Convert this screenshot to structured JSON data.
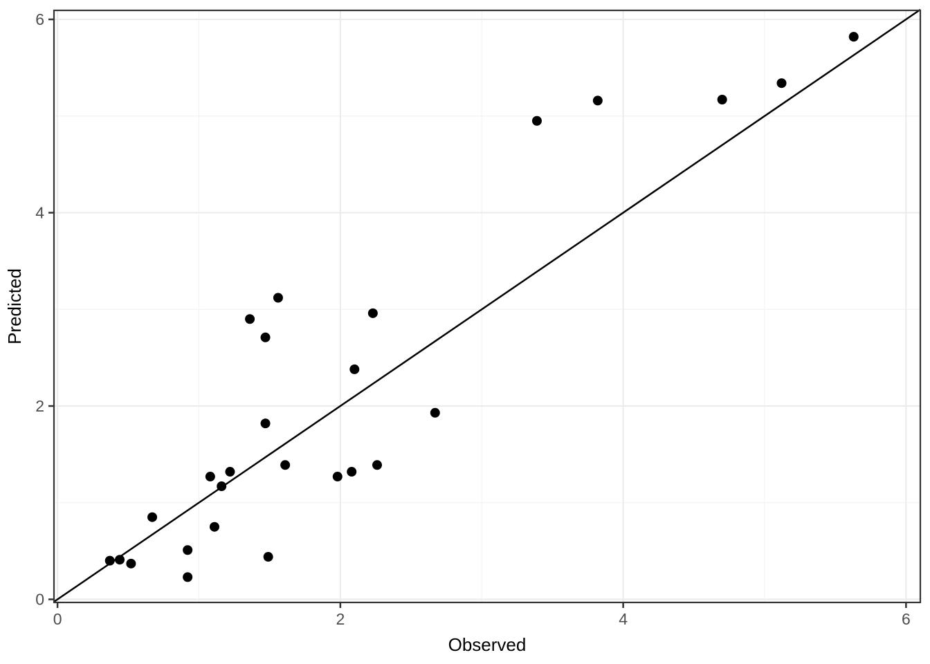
{
  "chart_data": {
    "type": "scatter",
    "title": "",
    "xlabel": "Observed",
    "ylabel": "Predicted",
    "xlim": [
      -0.025,
      6.101
    ],
    "ylim": [
      -0.032,
      6.093
    ],
    "x_major_ticks": [
      0,
      2,
      4,
      6
    ],
    "y_major_ticks": [
      0,
      2,
      4,
      6
    ],
    "x_minor_ticks": [
      1,
      3,
      5
    ],
    "y_minor_ticks": [
      1,
      3,
      5
    ],
    "x_tick_labels": [
      "0",
      "2",
      "4",
      "6"
    ],
    "y_tick_labels": [
      "0",
      "2",
      "4",
      "6"
    ],
    "grid": "major-and-minor",
    "legend": "none",
    "identity_line": {
      "slope": 1,
      "intercept": 0
    },
    "points": [
      {
        "x": 0.37,
        "y": 0.4
      },
      {
        "x": 0.44,
        "y": 0.41
      },
      {
        "x": 0.52,
        "y": 0.37
      },
      {
        "x": 0.67,
        "y": 0.85
      },
      {
        "x": 0.92,
        "y": 0.51
      },
      {
        "x": 0.92,
        "y": 0.23
      },
      {
        "x": 1.08,
        "y": 1.27
      },
      {
        "x": 1.11,
        "y": 0.75
      },
      {
        "x": 1.16,
        "y": 1.17
      },
      {
        "x": 1.22,
        "y": 1.32
      },
      {
        "x": 1.36,
        "y": 2.9
      },
      {
        "x": 1.47,
        "y": 2.71
      },
      {
        "x": 1.47,
        "y": 1.82
      },
      {
        "x": 1.49,
        "y": 0.44
      },
      {
        "x": 1.56,
        "y": 3.12
      },
      {
        "x": 1.61,
        "y": 1.39
      },
      {
        "x": 1.98,
        "y": 1.27
      },
      {
        "x": 2.08,
        "y": 1.32
      },
      {
        "x": 2.1,
        "y": 2.38
      },
      {
        "x": 2.23,
        "y": 2.96
      },
      {
        "x": 2.26,
        "y": 1.39
      },
      {
        "x": 2.67,
        "y": 1.93
      },
      {
        "x": 3.39,
        "y": 4.95
      },
      {
        "x": 3.82,
        "y": 5.16
      },
      {
        "x": 4.7,
        "y": 5.17
      },
      {
        "x": 5.12,
        "y": 5.34
      },
      {
        "x": 5.63,
        "y": 5.82
      }
    ],
    "colors": {
      "background": "#ffffff",
      "panel_background": "#ffffff",
      "panel_border": "#333333",
      "grid_major": "#ebebeb",
      "grid_minor": "#f3f3f3",
      "point": "#000000",
      "identity_line": "#000000",
      "tick_mark": "#333333",
      "tick_label": "#4d4d4d",
      "axis_title": "#000000"
    }
  }
}
